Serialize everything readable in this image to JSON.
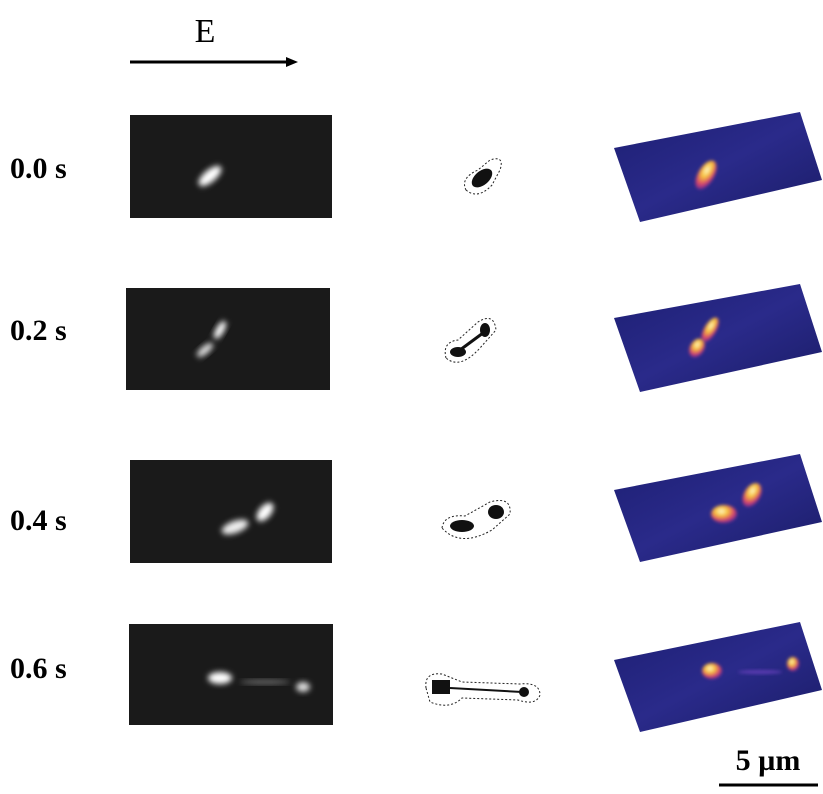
{
  "field_label": "E",
  "rows": [
    {
      "time": "0.0 s"
    },
    {
      "time": "0.2 s"
    },
    {
      "time": "0.4 s"
    },
    {
      "time": "0.6 s"
    }
  ],
  "scale_bar": "5 µm"
}
